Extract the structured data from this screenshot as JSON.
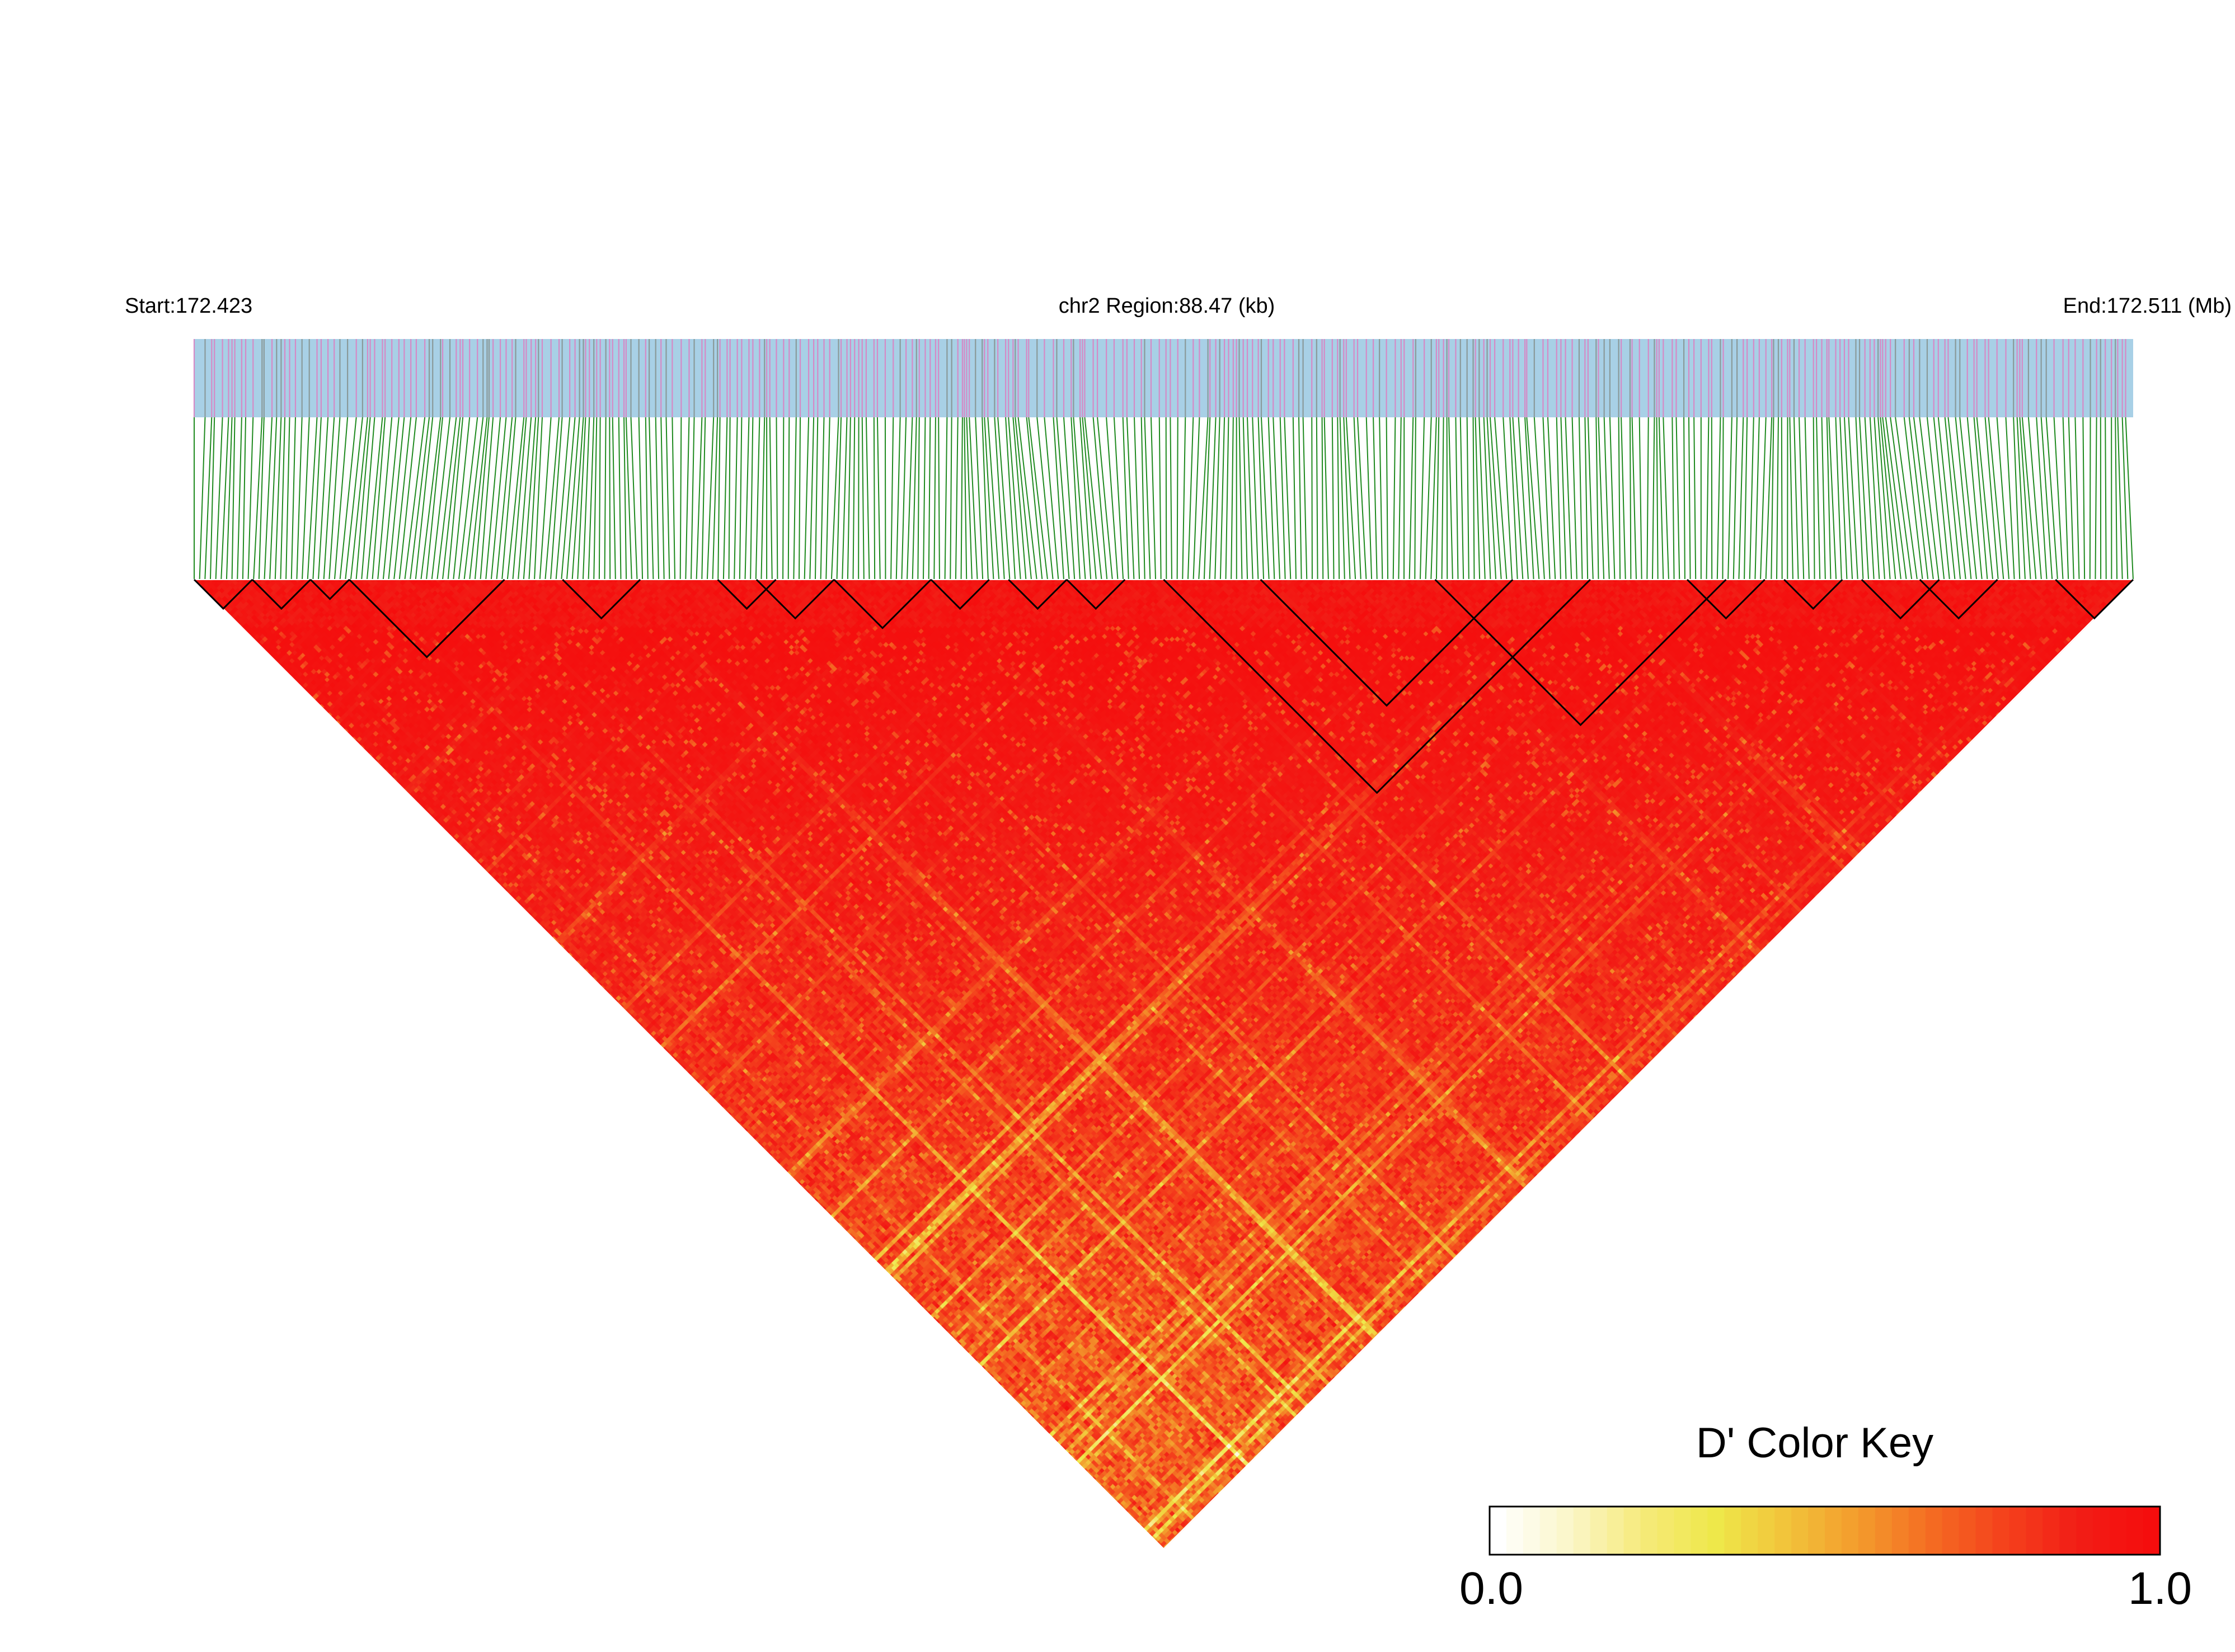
{
  "chart_data": {
    "type": "heatmap",
    "subtype": "linkage-disequilibrium-triangle",
    "metric": "D'",
    "chromosome": "chr2",
    "header": {
      "start_label": "Start:172.423",
      "region_label": "chr2 Region:88.47 (kb)",
      "end_label": "End:172.511 (Mb)"
    },
    "region": {
      "start_mb": 172.423,
      "end_mb": 172.511,
      "length_kb": 88.47
    },
    "units": {
      "position": "Mb",
      "region": "kb"
    },
    "snp_count_estimate": 360,
    "value_range": [
      0.0,
      1.0
    ],
    "color_key": {
      "title": "D' Color Key",
      "min_label": "0.0",
      "max_label": "1.0",
      "stops": [
        "#ffffff",
        "#fbf6c8",
        "#f6ea7a",
        "#eee84a",
        "#f2c23a",
        "#f39a2c",
        "#f46a22",
        "#f4401c",
        "#f21d16",
        "#f50d0d"
      ]
    },
    "colors": {
      "track_background": "#a8d0e6",
      "snp_tick_pink": "#d58ac6",
      "snp_tick_gray": "#8a9a9a",
      "connector": "#1f8a1f",
      "block_outline": "#000000",
      "high_ld": "#f50d0d",
      "low_ld": "#ffffff"
    },
    "ld_blocks_fraction": [
      [
        0.0,
        0.03
      ],
      [
        0.03,
        0.06
      ],
      [
        0.06,
        0.08
      ],
      [
        0.08,
        0.16
      ],
      [
        0.19,
        0.23
      ],
      [
        0.27,
        0.3
      ],
      [
        0.29,
        0.33
      ],
      [
        0.33,
        0.38
      ],
      [
        0.38,
        0.41
      ],
      [
        0.42,
        0.45
      ],
      [
        0.45,
        0.48
      ],
      [
        0.5,
        0.72
      ],
      [
        0.55,
        0.68
      ],
      [
        0.64,
        0.79
      ],
      [
        0.77,
        0.81
      ],
      [
        0.82,
        0.85
      ],
      [
        0.86,
        0.9
      ],
      [
        0.89,
        0.93
      ],
      [
        0.96,
        1.0
      ]
    ]
  }
}
